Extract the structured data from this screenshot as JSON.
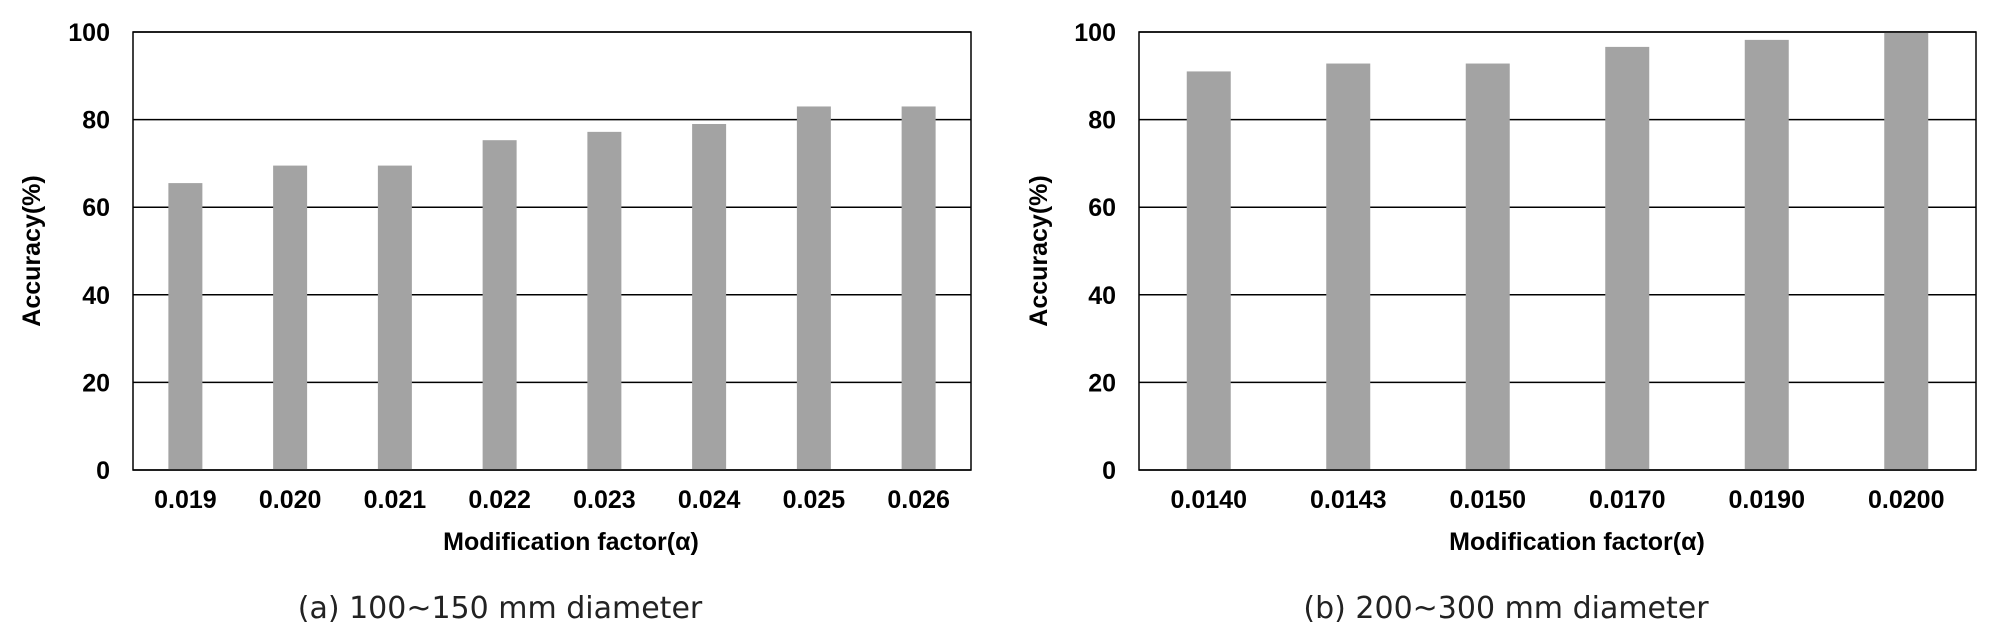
{
  "colors": {
    "bar": "#a3a3a3",
    "grid": "#000000",
    "frame": "#000000",
    "text": "#000000"
  },
  "chart_data": [
    {
      "type": "bar",
      "caption": "(a) 100~150 mm diameter",
      "xlabel": "Modification factor(α)",
      "ylabel": "Accuracy(%)",
      "ylim": [
        0,
        100
      ],
      "yticks": [
        "0",
        "20",
        "40",
        "60",
        "80",
        "100"
      ],
      "grid": true,
      "categories": [
        "0.019",
        "0.020",
        "0.021",
        "0.022",
        "0.023",
        "0.024",
        "0.025",
        "0.026"
      ],
      "values": [
        65.5,
        69.5,
        69.5,
        75.3,
        77.2,
        79.0,
        83.0,
        83.0
      ]
    },
    {
      "type": "bar",
      "caption": "(b) 200~300 mm diameter",
      "xlabel": "Modification factor(α)",
      "ylabel": "Accuracy(%)",
      "ylim": [
        0,
        100
      ],
      "yticks": [
        "0",
        "20",
        "40",
        "60",
        "80",
        "100"
      ],
      "grid": true,
      "categories": [
        "0.0140",
        "0.0143",
        "0.0150",
        "0.0170",
        "0.0190",
        "0.0200"
      ],
      "values": [
        91.0,
        92.8,
        92.8,
        96.6,
        98.2,
        100.0
      ]
    }
  ]
}
